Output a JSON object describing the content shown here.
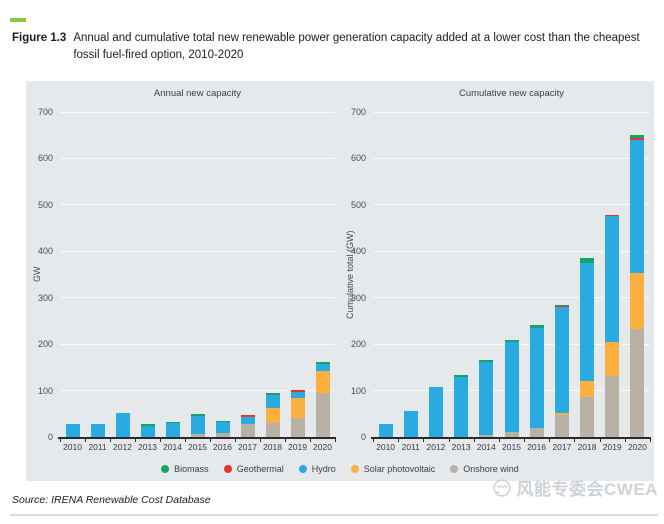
{
  "figure": {
    "label": "Figure 1.3",
    "caption": "Annual and cumulative total new renewable power generation capacity added at a lower cost than the cheapest fossil fuel-fired option, 2010-2020"
  },
  "source": "Source: IRENA Renewable Cost Database",
  "watermark": "风能专委会CWEA",
  "colors": {
    "accent_dash": "#8dc63f",
    "panel_bg": "#e5e9eb",
    "gridline": "#f7f9fa",
    "axis": "#2b292c",
    "watermark": "#ced2d6",
    "bottom_rule": "#d9dbdc"
  },
  "legend": [
    {
      "label": "Biomass",
      "color": "#12a566"
    },
    {
      "label": "Geothermal",
      "color": "#e8322a"
    },
    {
      "label": "Hydro",
      "color": "#29abe2"
    },
    {
      "label": "Solar photovoltaic",
      "color": "#fbb040"
    },
    {
      "label": "Onshore wind",
      "color": "#b7b2a4"
    }
  ],
  "chart_data": [
    {
      "type": "bar",
      "stacked": true,
      "title": "Annual new capacity",
      "ylabel": "GW",
      "ylim": [
        0,
        700
      ],
      "yticks": [
        0,
        100,
        200,
        300,
        400,
        500,
        600,
        700
      ],
      "grid": true,
      "categories": [
        "2010",
        "2011",
        "2012",
        "2013",
        "2014",
        "2015",
        "2016",
        "2017",
        "2018",
        "2019",
        "2020"
      ],
      "series": [
        {
          "name": "Onshore wind",
          "color": "#b7b2a4",
          "values": [
            0,
            0,
            0,
            0,
            0,
            6,
            8,
            28,
            30,
            41,
            94
          ]
        },
        {
          "name": "Solar photovoltaic",
          "color": "#fbb040",
          "values": [
            0,
            0,
            0,
            0,
            0,
            0,
            0,
            0,
            33,
            43,
            48
          ]
        },
        {
          "name": "Hydro",
          "color": "#29abe2",
          "values": [
            28,
            28,
            52,
            24,
            30,
            40,
            24,
            16,
            27,
            14,
            15
          ]
        },
        {
          "name": "Geothermal",
          "color": "#e8322a",
          "values": [
            0,
            0,
            0,
            0,
            0,
            0,
            0,
            2,
            0,
            2,
            0
          ]
        },
        {
          "name": "Biomass",
          "color": "#12a566",
          "values": [
            0,
            0,
            0,
            1,
            2,
            1,
            1,
            0,
            5,
            0,
            4
          ]
        }
      ],
      "totals": [
        28,
        28,
        52,
        25,
        32,
        47,
        33,
        46,
        95,
        100,
        161
      ]
    },
    {
      "type": "bar",
      "stacked": true,
      "title": "Cumulative new capacity",
      "ylabel": "Cumulative total (GW)",
      "ylim": [
        0,
        700
      ],
      "yticks": [
        0,
        100,
        200,
        300,
        400,
        500,
        600,
        700
      ],
      "grid": true,
      "categories": [
        "2010",
        "2011",
        "2012",
        "2013",
        "2014",
        "2015",
        "2016",
        "2017",
        "2018",
        "2019",
        "2020"
      ],
      "series": [
        {
          "name": "Onshore wind",
          "color": "#b7b2a4",
          "values": [
            0,
            0,
            0,
            0,
            4,
            11,
            20,
            47,
            87,
            132,
            233
          ]
        },
        {
          "name": "Solar photovoltaic",
          "color": "#fbb040",
          "values": [
            0,
            0,
            0,
            0,
            0,
            0,
            0,
            5,
            33,
            73,
            120
          ]
        },
        {
          "name": "Hydro",
          "color": "#29abe2",
          "values": [
            27,
            57,
            107,
            130,
            157,
            194,
            215,
            227,
            255,
            270,
            287
          ]
        },
        {
          "name": "Geothermal",
          "color": "#e8322a",
          "values": [
            0,
            0,
            0,
            0,
            0,
            0,
            0,
            2,
            0,
            3,
            3
          ]
        },
        {
          "name": "Biomass",
          "color": "#12a566",
          "values": [
            0,
            0,
            0,
            3,
            4,
            5,
            6,
            2,
            10,
            0,
            7
          ]
        }
      ],
      "totals": [
        27,
        57,
        107,
        133,
        165,
        210,
        241,
        283,
        385,
        478,
        650
      ]
    }
  ]
}
